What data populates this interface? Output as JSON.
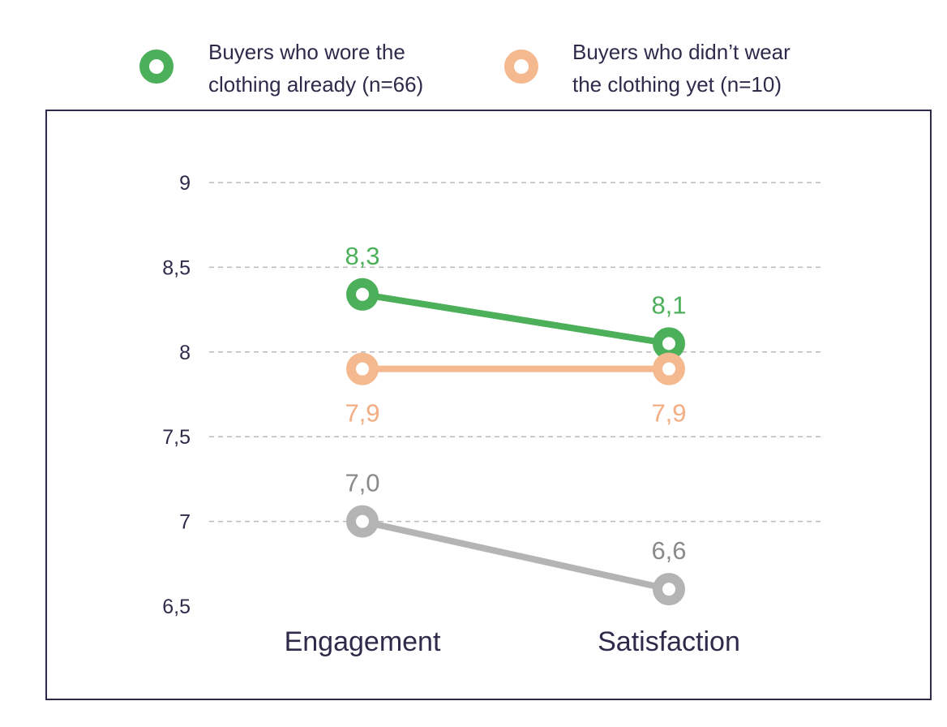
{
  "chart_data": {
    "type": "line",
    "categories": [
      "Engagement",
      "Satisfaction"
    ],
    "ylim": [
      6.5,
      9
    ],
    "yticks": [
      {
        "value": 9,
        "label": "9"
      },
      {
        "value": 8.5,
        "label": "8,5"
      },
      {
        "value": 8,
        "label": "8"
      },
      {
        "value": 7.5,
        "label": "7,5"
      },
      {
        "value": 7,
        "label": "7"
      },
      {
        "value": 6.5,
        "label": "6,5"
      }
    ],
    "grid": true,
    "legend_position": "top",
    "series": [
      {
        "name_lines": [
          "Buyers who wore the",
          "clothing already (n=66)"
        ],
        "in_legend": true,
        "color": "#4caf5a",
        "label_color": "#4caf5a",
        "values": [
          8.34,
          8.05
        ],
        "labels": [
          "8,3",
          "8,1"
        ],
        "label_side": [
          "above",
          "above"
        ]
      },
      {
        "name_lines": [
          "Buyers who didn’t wear",
          "the clothing yet (n=10)"
        ],
        "in_legend": true,
        "color": "#f5b98f",
        "label_color": "#f2ad83",
        "values": [
          7.9,
          7.9
        ],
        "labels": [
          "7,9",
          "7,9"
        ],
        "label_side": [
          "below",
          "below"
        ]
      },
      {
        "name_lines": [],
        "in_legend": false,
        "color": "#b4b4b4",
        "label_color": "#8a8a8a",
        "values": [
          7.0,
          6.6
        ],
        "labels": [
          "7,0",
          "6,6"
        ],
        "label_side": [
          "above",
          "above"
        ]
      }
    ]
  }
}
